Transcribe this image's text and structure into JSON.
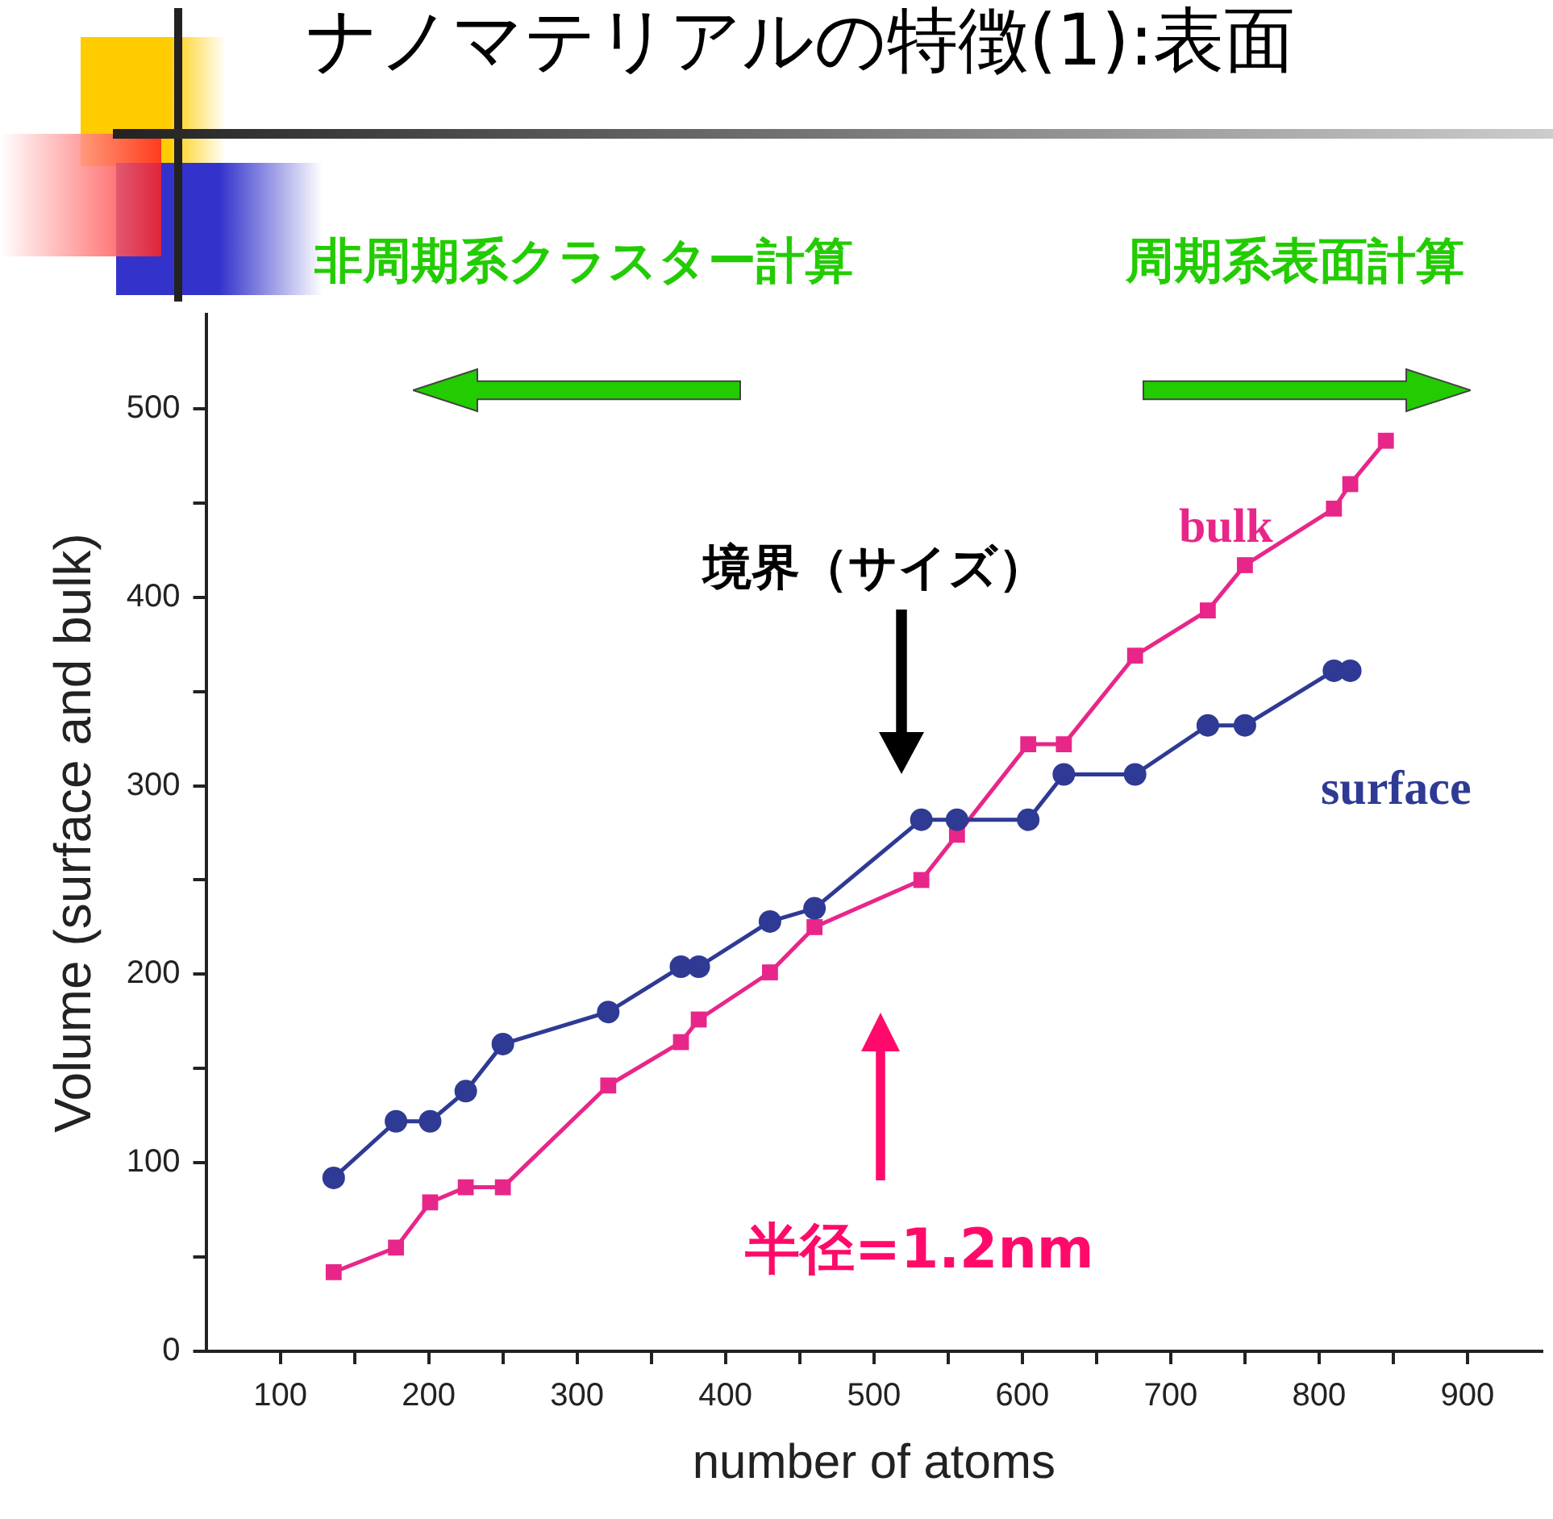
{
  "chart_data": {
    "type": "line",
    "title": "ナノマテリアルの特徴(1):表面",
    "xlabel": "number of atoms",
    "ylabel": "Volume (surface and bulk)",
    "xlim": [
      50,
      950
    ],
    "ylim": [
      0,
      550
    ],
    "xticks": [
      100,
      {
        "value": 150,
        "label": null
      },
      200,
      {
        "value": 250,
        "label": null
      },
      300,
      {
        "value": 350,
        "label": null
      },
      400,
      {
        "value": 450,
        "label": null
      },
      500,
      {
        "value": 550,
        "label": null
      },
      600,
      {
        "value": 650,
        "label": null
      },
      700,
      {
        "value": 750,
        "label": null
      },
      800,
      {
        "value": 850,
        "label": null
      },
      900
    ],
    "yticks": [
      0,
      {
        "value": 50,
        "label": null
      },
      100,
      {
        "value": 150,
        "label": null
      },
      200,
      {
        "value": 250,
        "label": null
      },
      300,
      {
        "value": 350,
        "label": null
      },
      400,
      {
        "value": 450,
        "label": null
      },
      500
    ],
    "grid": false,
    "legend": false,
    "series": [
      {
        "name": "surface",
        "color": "#2e3a94",
        "marker": "circle",
        "x": [
          136,
          178,
          201,
          225,
          250,
          321,
          370,
          382,
          430,
          460,
          532,
          556,
          604,
          628,
          676,
          725,
          750,
          810,
          821
        ],
        "values": [
          92,
          122,
          122,
          138,
          163,
          180,
          204,
          204,
          228,
          235,
          282,
          282,
          282,
          306,
          306,
          332,
          332,
          361,
          361
        ]
      },
      {
        "name": "bulk",
        "color": "#e8268a",
        "marker": "square",
        "x": [
          136,
          178,
          201,
          225,
          250,
          321,
          370,
          382,
          430,
          460,
          532,
          556,
          604,
          628,
          676,
          725,
          750,
          810,
          821,
          845
        ],
        "values": [
          42,
          55,
          79,
          87,
          87,
          141,
          164,
          176,
          201,
          225,
          250,
          274,
          322,
          322,
          369,
          393,
          417,
          447,
          460,
          483
        ]
      }
    ],
    "annotations": [
      "非周期系クラスター計算",
      "周期系表面計算",
      "境界（サイズ）",
      "半径=1.2nm"
    ]
  }
}
